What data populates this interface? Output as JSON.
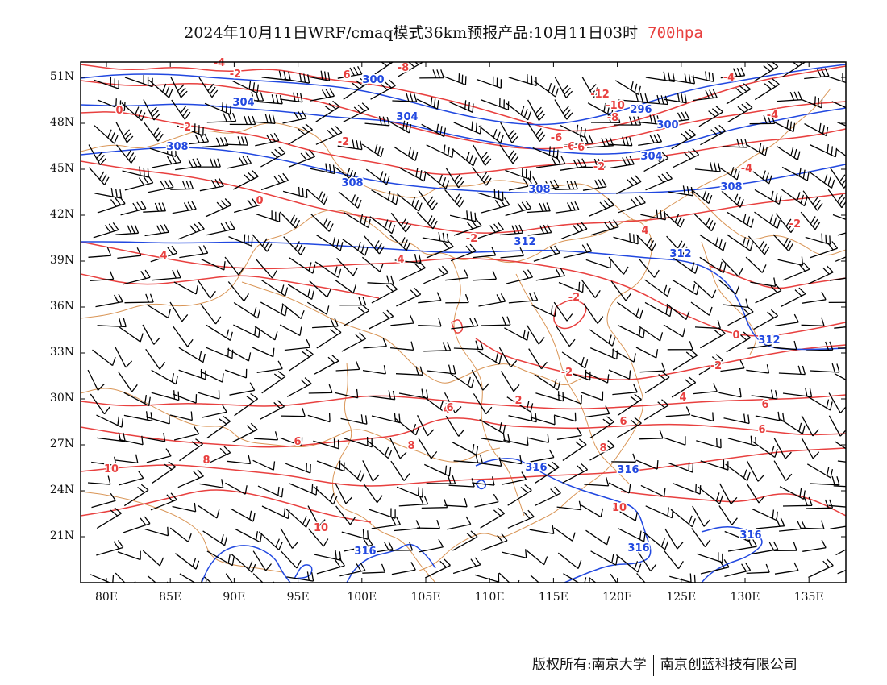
{
  "header": {
    "title": "2024年10月11日WRF/cmaq模式36km预报产品:10月11日03时",
    "level": "700hpa"
  },
  "axes": {
    "lat_labels": [
      "51N",
      "48N",
      "45N",
      "42N",
      "39N",
      "36N",
      "33N",
      "30N",
      "27N",
      "24N",
      "21N"
    ],
    "lon_labels": [
      "80E",
      "85E",
      "90E",
      "95E",
      "100E",
      "105E",
      "110E",
      "115E",
      "120E",
      "125E",
      "130E",
      "135E"
    ]
  },
  "colors": {
    "temperature": "#e8403f",
    "geopotential": "#2148e0",
    "boundary": "#d99556",
    "wind": "#000000"
  },
  "contour_labels": {
    "temperature": [
      "-4",
      "-2",
      "0",
      "-6",
      "-8",
      "-12",
      "-10",
      "-8",
      "-6",
      "-4",
      "-2",
      "-2",
      "-6",
      "-4",
      "-2",
      "-4",
      "0",
      "-2",
      "4",
      "-2",
      "4",
      "4",
      "-2",
      "-2",
      "0",
      "-2",
      "2",
      "4",
      "4",
      "6",
      "6",
      "6",
      "6",
      "8",
      "8",
      "8",
      "10",
      "10",
      "10",
      "6",
      "6"
    ],
    "geopotential": [
      "300",
      "304",
      "296",
      "300",
      "304",
      "308",
      "304",
      "308",
      "308",
      "308",
      "312",
      "312",
      "312",
      "316",
      "316",
      "316",
      "316",
      "316"
    ]
  },
  "footer": {
    "owner_label": "版权所有:南京大学",
    "company_label": "南京创蓝科技有限公司"
  }
}
